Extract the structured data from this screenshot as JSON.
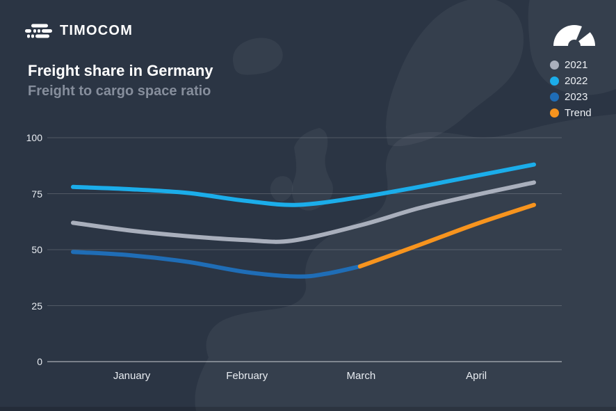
{
  "header": {
    "logo_text": "TIMOCOM",
    "title": "Freight share in Germany",
    "subtitle": "Freight to cargo space ratio"
  },
  "icons": {
    "logo_icon": "timocom-speedlines-truck",
    "corner_icon": "speedometer-gauge"
  },
  "colors": {
    "background": "#2b3544",
    "map_silhouette": "rgba(255,255,255,0.05)",
    "gridline": "rgba(255,255,255,0.18)",
    "axis_zero_line": "rgba(255,255,255,0.5)",
    "title": "#ffffff",
    "subtitle": "#868e9c",
    "tick_label": "#e9edf2",
    "series_2021": "#a9afbc",
    "series_2022": "#1badea",
    "series_2023": "#1f6db6",
    "trend": "#f7941e"
  },
  "chart_data": {
    "type": "line",
    "title": "Freight share in Germany",
    "subtitle": "Freight to cargo space ratio",
    "xlabel": "",
    "ylabel": "",
    "xlim": [
      0,
      4
    ],
    "ylim": [
      0,
      100
    ],
    "yticks": [
      100,
      75,
      50,
      25,
      0
    ],
    "xticks": [
      {
        "label": "January",
        "x": 0.51
      },
      {
        "label": "February",
        "x": 1.51
      },
      {
        "label": "March",
        "x": 2.5
      },
      {
        "label": "April",
        "x": 3.5
      }
    ],
    "grid": true,
    "legend_position": "top-right",
    "series": [
      {
        "name": "2021",
        "color": "#a9afbc",
        "points": [
          [
            0,
            62
          ],
          [
            0.5,
            58.5
          ],
          [
            1,
            56
          ],
          [
            1.5,
            54.3
          ],
          [
            1.9,
            54
          ],
          [
            2.5,
            61
          ],
          [
            3,
            68.5
          ],
          [
            3.5,
            74.5
          ],
          [
            4,
            80
          ]
        ]
      },
      {
        "name": "2022",
        "color": "#1badea",
        "points": [
          [
            0,
            78
          ],
          [
            0.5,
            77
          ],
          [
            1,
            75.3
          ],
          [
            1.5,
            71.8
          ],
          [
            1.95,
            70
          ],
          [
            2.5,
            73.5
          ],
          [
            3,
            78
          ],
          [
            3.5,
            83
          ],
          [
            4,
            88
          ]
        ]
      },
      {
        "name": "2023",
        "color": "#1f6db6",
        "points": [
          [
            0,
            49
          ],
          [
            0.5,
            47.5
          ],
          [
            1,
            44.5
          ],
          [
            1.5,
            40
          ],
          [
            1.95,
            38
          ],
          [
            2.2,
            39.3
          ],
          [
            2.49,
            42.5
          ]
        ]
      },
      {
        "name": "Trend",
        "color": "#f7941e",
        "points": [
          [
            2.49,
            42.5
          ],
          [
            3,
            52
          ],
          [
            3.5,
            61.5
          ],
          [
            4,
            70
          ]
        ]
      }
    ]
  }
}
